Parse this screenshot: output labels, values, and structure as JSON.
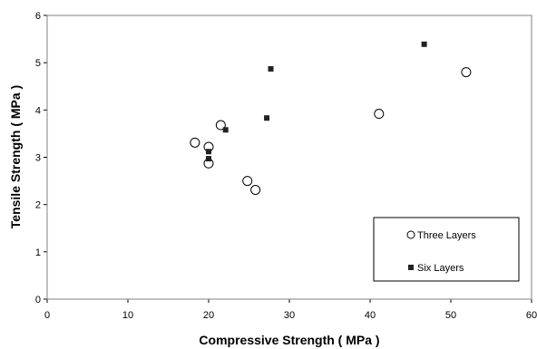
{
  "chart_data": {
    "type": "scatter",
    "title": "",
    "xlabel": "Compressive Strength ( MPa )",
    "ylabel": "Tensile Strength ( MPa )",
    "xlim": [
      0,
      60
    ],
    "ylim": [
      0,
      6
    ],
    "x_ticks": [
      0,
      10,
      20,
      30,
      40,
      50,
      60
    ],
    "y_ticks": [
      0,
      1,
      2,
      3,
      4,
      5,
      6
    ],
    "grid": false,
    "legend_position": "bottom-right",
    "series": [
      {
        "name": "Three Layers",
        "marker": "open-circle",
        "color": "#000000",
        "points": [
          {
            "x": 18.3,
            "y": 3.31
          },
          {
            "x": 20.0,
            "y": 3.22
          },
          {
            "x": 20.0,
            "y": 2.87
          },
          {
            "x": 21.5,
            "y": 3.68
          },
          {
            "x": 24.8,
            "y": 2.5
          },
          {
            "x": 25.8,
            "y": 2.31
          },
          {
            "x": 41.1,
            "y": 3.92
          },
          {
            "x": 51.9,
            "y": 4.8
          }
        ]
      },
      {
        "name": "Six Layers",
        "marker": "filled-square",
        "color": "#222222",
        "points": [
          {
            "x": 20.0,
            "y": 3.12
          },
          {
            "x": 20.0,
            "y": 2.97
          },
          {
            "x": 22.1,
            "y": 3.58
          },
          {
            "x": 27.2,
            "y": 3.83
          },
          {
            "x": 27.7,
            "y": 4.87
          },
          {
            "x": 46.7,
            "y": 5.39
          }
        ]
      }
    ]
  }
}
